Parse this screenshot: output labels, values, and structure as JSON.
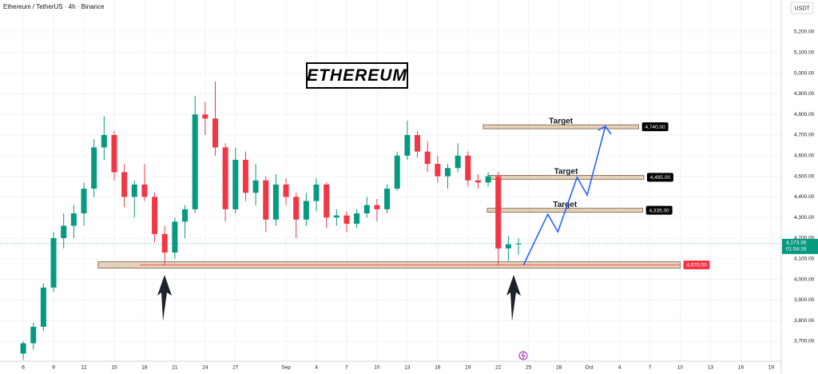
{
  "chart_data": {
    "type": "candlestick",
    "title": "Ethereum / TetherUS · 4h · Binance",
    "currency": "USDT",
    "badge": "ETHEREUM",
    "up_color": "#089981",
    "down_color": "#f23645",
    "grid": true,
    "xlim": [
      -2.3,
      75
    ],
    "ylim": [
      3603,
      5355
    ],
    "xticks": [
      {
        "value": 0,
        "label": "6"
      },
      {
        "value": 3,
        "label": "9"
      },
      {
        "value": 6,
        "label": "12"
      },
      {
        "value": 9,
        "label": "15"
      },
      {
        "value": 12,
        "label": "18"
      },
      {
        "value": 15,
        "label": "21"
      },
      {
        "value": 18,
        "label": "24"
      },
      {
        "value": 21,
        "label": "27"
      },
      {
        "value": 26,
        "label": "Sep"
      },
      {
        "value": 29,
        "label": "4"
      },
      {
        "value": 32,
        "label": "7"
      },
      {
        "value": 35,
        "label": "10"
      },
      {
        "value": 38,
        "label": "13"
      },
      {
        "value": 41,
        "label": "16"
      },
      {
        "value": 44,
        "label": "19"
      },
      {
        "value": 47,
        "label": "22"
      },
      {
        "value": 50,
        "label": "25"
      },
      {
        "value": 53,
        "label": "28"
      },
      {
        "value": 56,
        "label": "Oct"
      },
      {
        "value": 59,
        "label": "4"
      },
      {
        "value": 62,
        "label": "7"
      },
      {
        "value": 65,
        "label": "10"
      },
      {
        "value": 68,
        "label": "13"
      },
      {
        "value": 71,
        "label": "16"
      },
      {
        "value": 74,
        "label": "19"
      }
    ],
    "yticks": [
      {
        "value": 3700,
        "label": "3,700.00"
      },
      {
        "value": 3800,
        "label": "3,800.00"
      },
      {
        "value": 3900,
        "label": "3,900.00"
      },
      {
        "value": 4000,
        "label": "4,000.00"
      },
      {
        "value": 4100,
        "label": "4,100.00"
      },
      {
        "value": 4200,
        "label": "4,200.00"
      },
      {
        "value": 4300,
        "label": "4,300.00"
      },
      {
        "value": 4400,
        "label": "4,400.00"
      },
      {
        "value": 4500,
        "label": "4,500.00"
      },
      {
        "value": 4600,
        "label": "4,600.00"
      },
      {
        "value": 4700,
        "label": "4,700.00"
      },
      {
        "value": 4800,
        "label": "4,800.00"
      },
      {
        "value": 4900,
        "label": "4,900.00"
      },
      {
        "value": 5000,
        "label": "5,000.00"
      },
      {
        "value": 5100,
        "label": "5,100.00"
      },
      {
        "value": 5200,
        "label": "5,200.00"
      }
    ],
    "x": [
      0,
      1,
      2,
      3,
      4,
      5,
      6,
      7,
      8,
      9,
      10,
      11,
      12,
      13,
      14,
      15,
      16,
      17,
      18,
      19,
      20,
      21,
      22,
      23,
      24,
      25,
      26,
      27,
      28,
      29,
      30,
      31,
      32,
      33,
      34,
      35,
      36,
      37,
      38,
      39,
      40,
      41,
      42,
      43,
      44,
      45,
      46,
      47,
      48,
      49
    ],
    "open": [
      3640,
      3690,
      3770,
      3960,
      4200,
      4260,
      4320,
      4440,
      4640,
      4700,
      4520,
      4400,
      4460,
      4400,
      4220,
      4130,
      4280,
      4340,
      4800,
      4780,
      4640,
      4340,
      4580,
      4420,
      4480,
      4290,
      4460,
      4400,
      4290,
      4380,
      4460,
      4300,
      4310,
      4270,
      4320,
      4360,
      4340,
      4440,
      4600,
      4700,
      4620,
      4560,
      4500,
      4540,
      4600,
      4480,
      4470,
      4500,
      4150,
      4170
    ],
    "high": [
      3700,
      3790,
      3980,
      4230,
      4320,
      4360,
      4470,
      4680,
      4790,
      4720,
      4560,
      4480,
      4560,
      4420,
      4260,
      4300,
      4360,
      4890,
      4860,
      4960,
      4660,
      4640,
      4620,
      4560,
      4500,
      4510,
      4490,
      4420,
      4420,
      4490,
      4470,
      4340,
      4330,
      4340,
      4400,
      4390,
      4460,
      4620,
      4770,
      4720,
      4670,
      4600,
      4560,
      4660,
      4620,
      4510,
      4520,
      4520,
      4210,
      4200
    ],
    "low": [
      3610,
      3660,
      3750,
      3940,
      4150,
      4200,
      4260,
      4400,
      4580,
      4480,
      4350,
      4300,
      4380,
      4180,
      4070,
      4100,
      4200,
      4320,
      4700,
      4600,
      4280,
      4320,
      4380,
      4360,
      4230,
      4260,
      4360,
      4200,
      4260,
      4330,
      4250,
      4260,
      4230,
      4250,
      4300,
      4280,
      4320,
      4430,
      4580,
      4590,
      4520,
      4470,
      4440,
      4520,
      4450,
      4440,
      4450,
      4070,
      4090,
      4120
    ],
    "close": [
      3690,
      3770,
      3960,
      4200,
      4260,
      4320,
      4440,
      4640,
      4700,
      4520,
      4400,
      4460,
      4400,
      4220,
      4130,
      4280,
      4340,
      4800,
      4780,
      4640,
      4340,
      4580,
      4420,
      4480,
      4290,
      4460,
      4400,
      4290,
      4380,
      4460,
      4300,
      4310,
      4270,
      4320,
      4360,
      4340,
      4440,
      4600,
      4700,
      4620,
      4560,
      4500,
      4540,
      4600,
      4480,
      4470,
      4500,
      4150,
      4170,
      4173.39
    ],
    "last_price": {
      "value": 4173.39,
      "label": "4,173.39",
      "countdown": "01:54:16"
    },
    "levels": [
      {
        "value": 4740,
        "label": "4,740.00",
        "x": [
          45.5,
          60.9
        ],
        "text": "Target",
        "color": "#000000"
      },
      {
        "value": 4495,
        "label": "4,495.00",
        "x": [
          46.0,
          61.4
        ],
        "text": "Target",
        "color": "#000000"
      },
      {
        "value": 4335,
        "label": "4,335.00",
        "x": [
          45.9,
          61.3
        ],
        "text": "Target",
        "color": "#000000"
      },
      {
        "value": 4070,
        "label": "4,070.00",
        "x": [
          7.4,
          65.0
        ],
        "color": "#f23645"
      }
    ],
    "projection": {
      "color": "#2962ff",
      "x": [
        49.5,
        51.9,
        52.9,
        54.8,
        55.8,
        57.6
      ],
      "values": [
        4070,
        4316,
        4231,
        4495,
        4409,
        4743
      ]
    }
  }
}
